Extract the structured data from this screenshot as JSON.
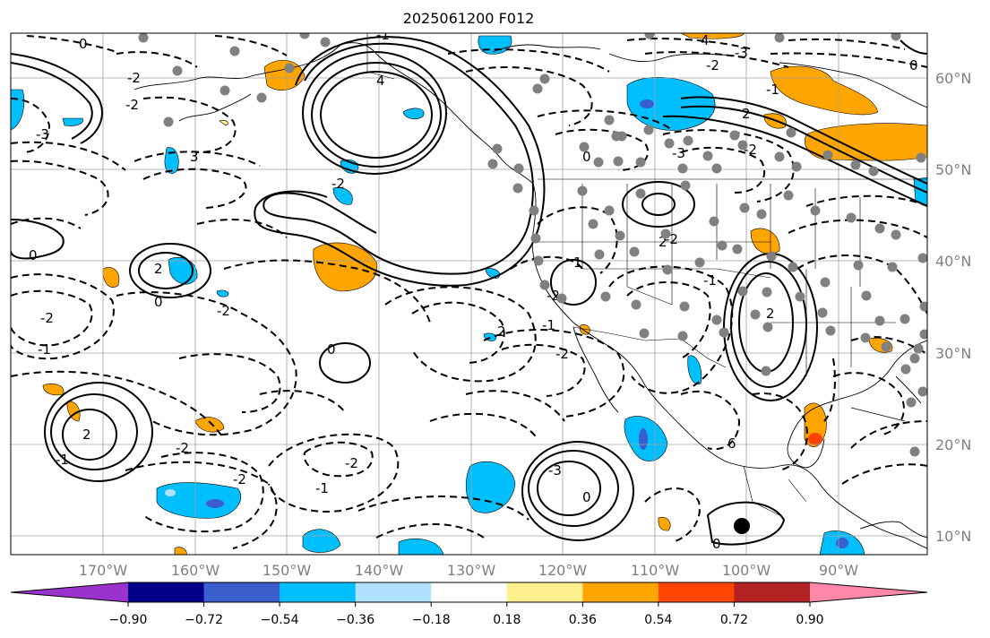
{
  "title": "2025061200 F012",
  "lat_labels": [
    "60°N",
    "50°N",
    "40°N",
    "30°N",
    "20°N",
    "10°N"
  ],
  "lon_labels": [
    "170°W",
    "160°W",
    "150°W",
    "140°W",
    "130°W",
    "120°W",
    "110°W",
    "100°W",
    "90°W"
  ],
  "colorbar": {
    "ticks": [
      "−0.90",
      "−0.72",
      "−0.54",
      "−0.36",
      "−0.18",
      "0.18",
      "0.36",
      "0.54",
      "0.72",
      "0.90"
    ],
    "colors": [
      "#9a32cd",
      "#00008b",
      "#3a5fcd",
      "#00bfff",
      "#b0e2ff",
      "#ffffff",
      "#fff08f",
      "#ffa500",
      "#ff4500",
      "#b22222",
      "#ff88aa"
    ]
  },
  "contour_labels": [
    "0",
    "-2",
    "-3",
    "-2",
    "3",
    "-2",
    "0",
    "2",
    "0",
    "-1",
    "-2",
    "-1",
    "-2",
    "2",
    "0",
    "-2",
    "-2",
    "-1",
    "-2",
    "2",
    "-1",
    "0",
    "-3",
    "-2",
    "-2",
    "1",
    "2",
    "-1",
    "2",
    "6",
    "0",
    "-2",
    "-2",
    "-3",
    "4",
    "-3",
    "-2",
    "-1",
    "4",
    "0",
    "-1",
    "0",
    "2"
  ],
  "markers": {
    "dot_color": "#808080",
    "center_dot_color": "#000000"
  }
}
